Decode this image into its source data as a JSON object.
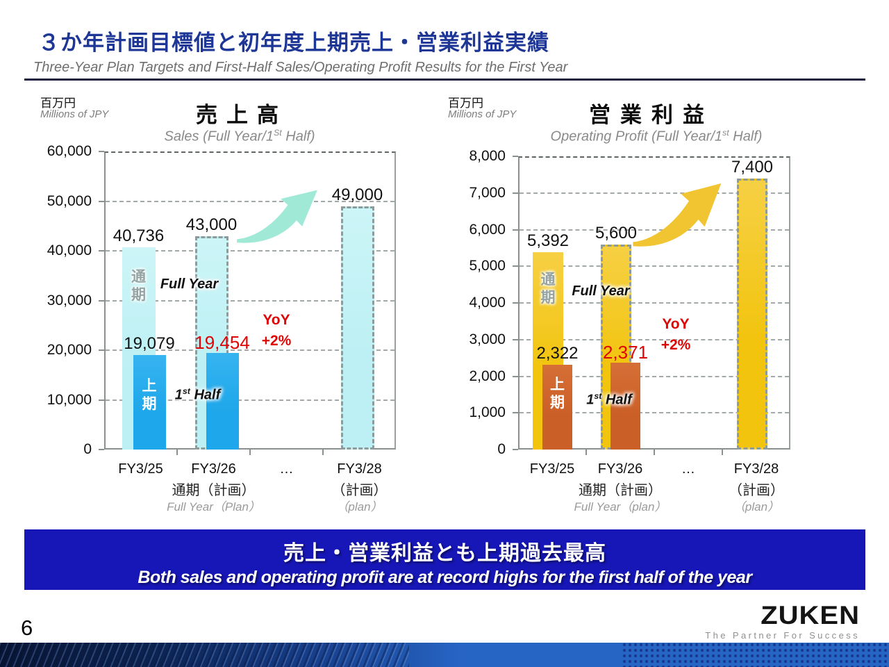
{
  "header": {
    "title_jp": "３か年計画目標値と初年度上期売上・営業利益実績",
    "title_en": "Three-Year Plan Targets and First-Half Sales/Operating Profit Results for the First Year"
  },
  "colors": {
    "title_blue": "#1e3796",
    "banner_blue": "#1717b8",
    "highlight_red": "#dd0505"
  },
  "banner": {
    "jp": "売上・営業利益とも上期過去最高",
    "en": "Both sales and operating profit are at record highs for the first half of the year"
  },
  "footer": {
    "page_number": "6",
    "logo_text": "ZUKEN",
    "logo_tagline": "The Partner For Success"
  },
  "chart_data": [
    {
      "type": "bar",
      "name": "sales",
      "title": "売上高",
      "subtitle_parts": [
        "Sales (Full Year/1",
        "St",
        " Half)"
      ],
      "unit_jp": "百万円",
      "unit_en": "Millions of JPY",
      "ylim": [
        0,
        60000
      ],
      "ytick_step": 10000,
      "categories": [
        "FY3/25",
        "FY3/26",
        "…",
        "FY3/28"
      ],
      "x_sublabels": [
        {
          "index": 1,
          "jp": "通期（計画）",
          "en": "Full Year（Plan）"
        },
        {
          "index": 3,
          "jp": "（計画）",
          "en": "（plan）"
        }
      ],
      "series": [
        {
          "name": "full-year",
          "label_jp": "通期",
          "label_en_parts": [
            "Full Year",
            "",
            ""
          ],
          "color": "#bdf0f4",
          "color2": "#ccf5f7",
          "values": [
            40736,
            43000,
            null,
            49000
          ],
          "planned": [
            false,
            true,
            false,
            true
          ],
          "value_colors": [
            "#111111",
            "#111111",
            null,
            "#111111"
          ]
        },
        {
          "name": "first-half",
          "label_jp": "上期",
          "label_en_parts": [
            "1",
            "st",
            " Half"
          ],
          "color": "#1ea7ea",
          "color2": "#36b4f0",
          "values": [
            19079,
            19454,
            null,
            null
          ],
          "planned": [
            false,
            false,
            false,
            false
          ],
          "value_colors": [
            "#111111",
            "#dd0505",
            null,
            null
          ]
        }
      ],
      "yoy": {
        "label": "YoY",
        "value": "+2%"
      },
      "arrow_color": "#9fe9d6"
    },
    {
      "type": "bar",
      "name": "operating-profit",
      "title": "営業利益",
      "subtitle_parts": [
        "Operating Profit (Full Year/1",
        "st",
        " Half)"
      ],
      "unit_jp": "百万円",
      "unit_en": "Millions of JPY",
      "ylim": [
        0,
        8000
      ],
      "ytick_step": 1000,
      "categories": [
        "FY3/25",
        "FY3/26",
        "…",
        "FY3/28"
      ],
      "x_sublabels": [
        {
          "index": 1,
          "jp": "通期（計画）",
          "en": "Full Year（plan）"
        },
        {
          "index": 3,
          "jp": "（計画）",
          "en": "（plan）"
        }
      ],
      "series": [
        {
          "name": "full-year",
          "label_jp": "通期",
          "label_en_parts": [
            "Full Year",
            "",
            ""
          ],
          "color": "#f2c40e",
          "color2": "#f6d044",
          "values": [
            5392,
            5600,
            null,
            7400
          ],
          "planned": [
            false,
            true,
            false,
            true
          ],
          "value_colors": [
            "#111111",
            "#111111",
            null,
            "#111111"
          ]
        },
        {
          "name": "first-half",
          "label_jp": "上期",
          "label_en_parts": [
            "1",
            "st",
            " Half"
          ],
          "color": "#cb5f28",
          "color2": "#d56f36",
          "values": [
            2322,
            2371,
            null,
            null
          ],
          "planned": [
            false,
            false,
            false,
            false
          ],
          "value_colors": [
            "#111111",
            "#dd0505",
            null,
            null
          ]
        }
      ],
      "yoy": {
        "label": "YoY",
        "value": "+2%"
      },
      "arrow_color": "#f1c531"
    }
  ]
}
